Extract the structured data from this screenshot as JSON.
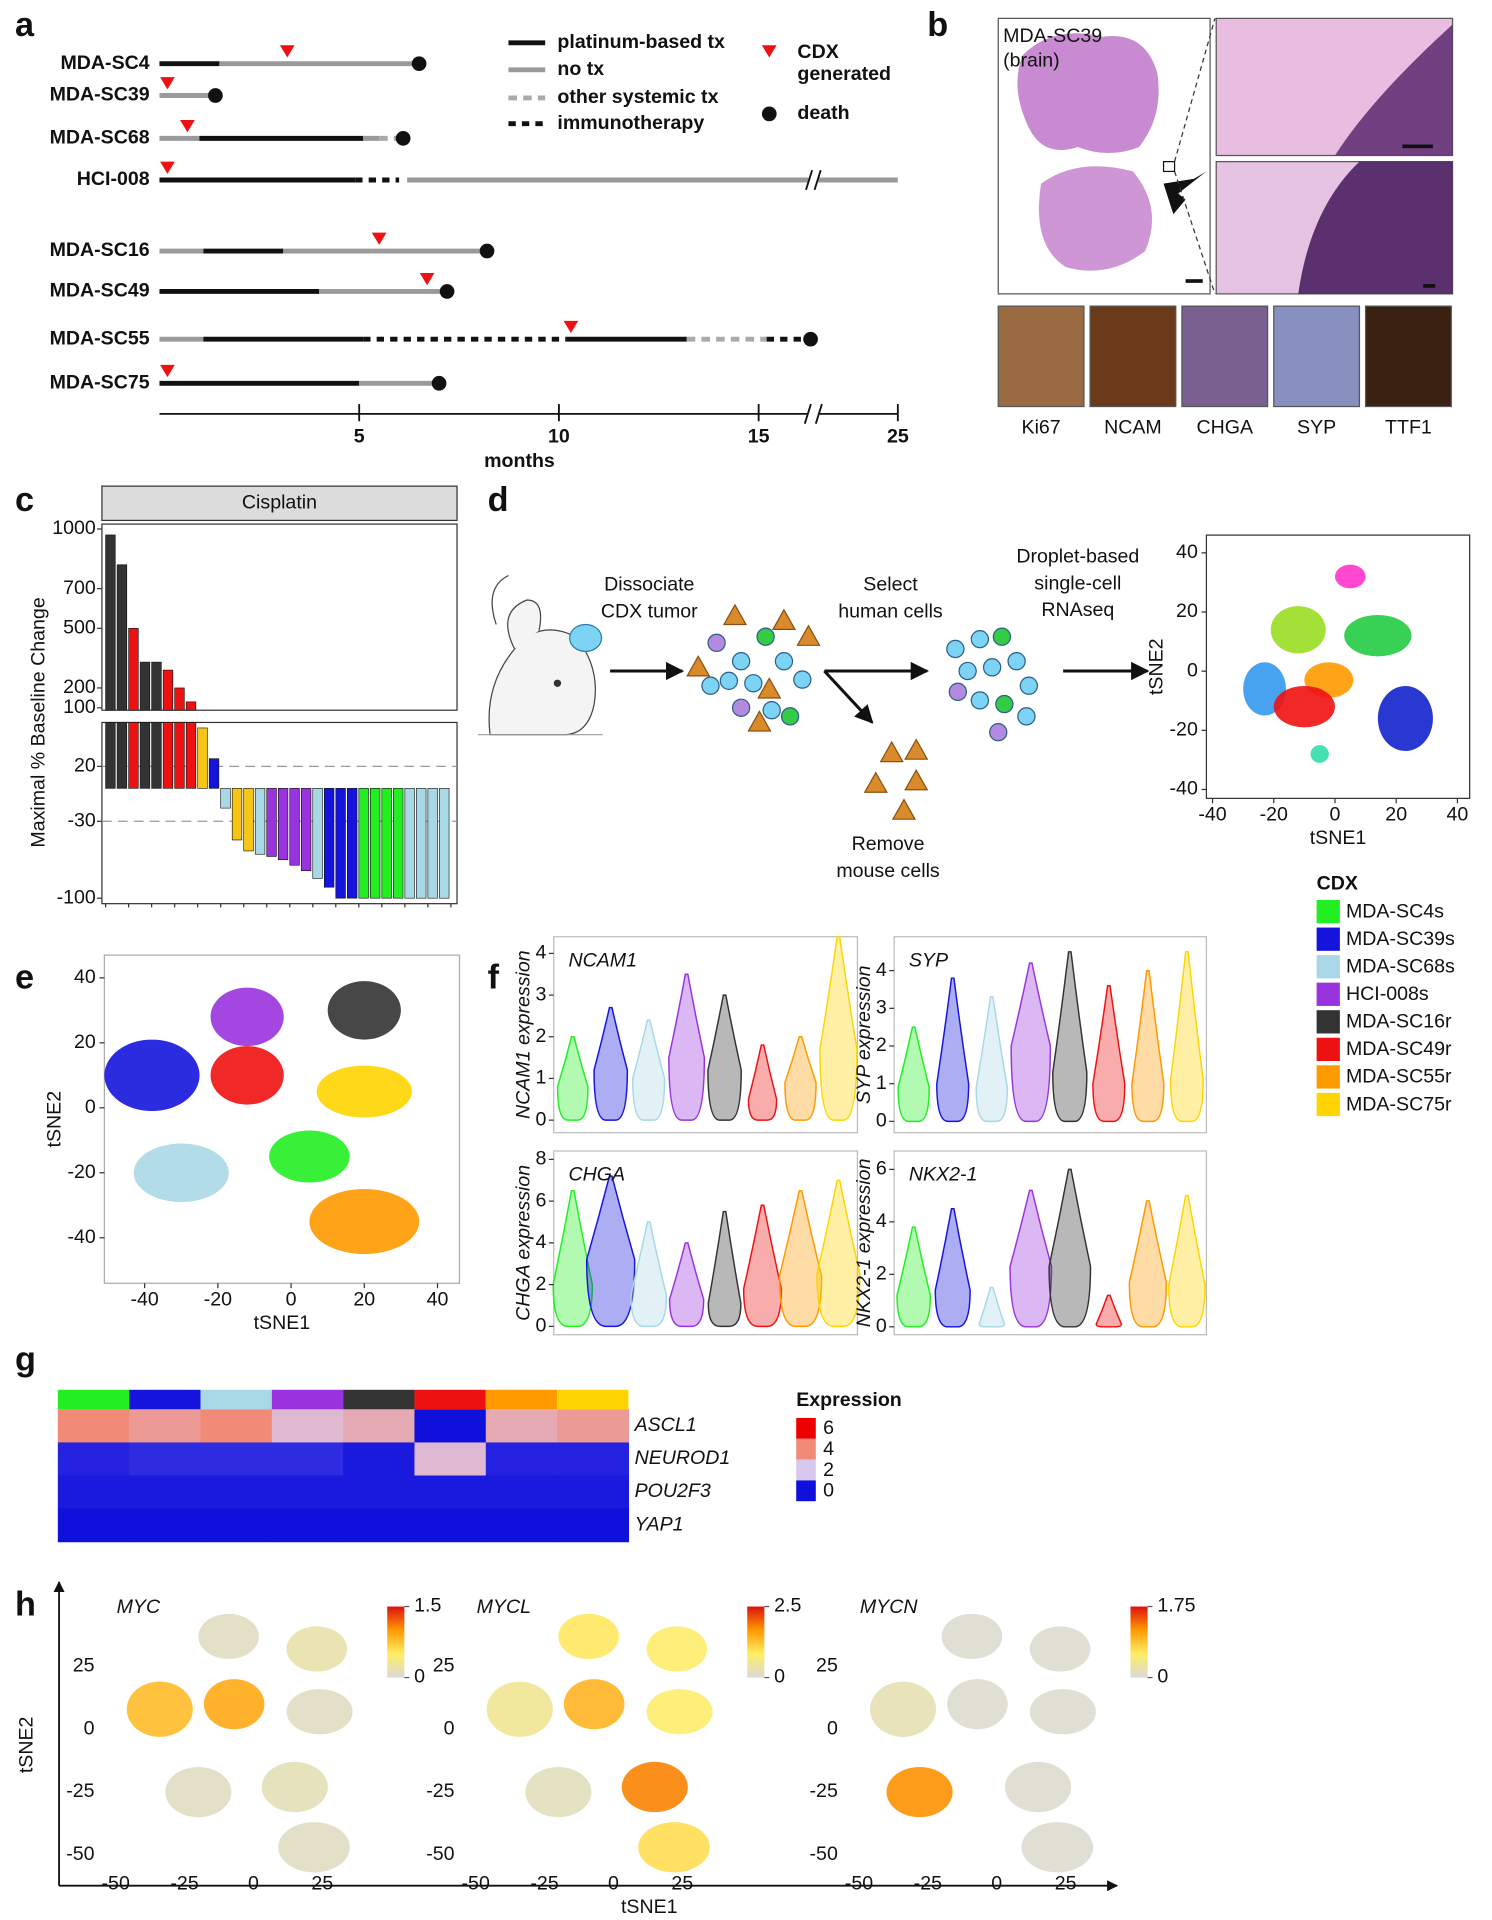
{
  "panel_labels": [
    "a",
    "b",
    "c",
    "d",
    "e",
    "f",
    "g",
    "h"
  ],
  "cdx_legend": {
    "title": "CDX",
    "names": [
      "MDA-SC4s",
      "MDA-SC39s",
      "MDA-SC68s",
      "HCI-008s",
      "MDA-SC16r",
      "MDA-SC49r",
      "MDA-SC55r",
      "MDA-SC75r"
    ],
    "colors": [
      "#22ee22",
      "#1414dd",
      "#a8d8e6",
      "#9933dd",
      "#333333",
      "#ee1111",
      "#ff9900",
      "#ffd400"
    ]
  },
  "histology": {
    "sample": [
      "MDA-SC39",
      "(brain)"
    ],
    "stains": [
      "Ki67",
      "NCAM",
      "CHGA",
      "SYP",
      "TTF1"
    ]
  },
  "workflow": {
    "steps": [
      [
        "Dissociate",
        "CDX tumor"
      ],
      [
        "Select",
        "human cells"
      ],
      [
        "Droplet-based",
        "single-cell",
        "RNAseq"
      ],
      [
        "Remove",
        "mouse cells"
      ]
    ]
  },
  "chart_data": [
    {
      "type": "timeline",
      "patients": [
        "MDA-SC4",
        "MDA-SC39",
        "MDA-SC68",
        "HCI-008",
        "MDA-SC16",
        "MDA-SC49",
        "MDA-SC55",
        "MDA-SC75"
      ],
      "segments": [
        [
          [
            0,
            1.5,
            0
          ],
          [
            1.5,
            6.5,
            1
          ]
        ],
        [
          [
            0,
            1.4,
            1
          ]
        ],
        [
          [
            0,
            1.0,
            1
          ],
          [
            1.0,
            5.1,
            0
          ],
          [
            5.1,
            5.5,
            1
          ],
          [
            5.5,
            6.0,
            2
          ]
        ],
        [
          [
            0,
            4.9,
            0
          ],
          [
            4.9,
            6.0,
            3
          ],
          [
            6.2,
            25,
            1
          ]
        ],
        [
          [
            0,
            1.1,
            1
          ],
          [
            1.1,
            3.1,
            0
          ],
          [
            3.1,
            8.2,
            1
          ]
        ],
        [
          [
            0,
            4.0,
            0
          ],
          [
            4.0,
            7.2,
            1
          ]
        ],
        [
          [
            0,
            1.1,
            1
          ],
          [
            1.1,
            5.1,
            0
          ],
          [
            5.1,
            10.2,
            3
          ],
          [
            10.2,
            13.2,
            0
          ],
          [
            13.2,
            15.2,
            2
          ],
          [
            15.2,
            16.3,
            3
          ]
        ],
        [
          [
            0,
            5.0,
            0
          ],
          [
            5.0,
            7.0,
            1
          ]
        ]
      ],
      "cdx": [
        3.2,
        0.2,
        0.7,
        0.2,
        5.5,
        6.7,
        10.3,
        0.2
      ],
      "death": [
        6.5,
        1.4,
        6.1,
        null,
        8.2,
        7.2,
        16.3,
        7.0
      ],
      "treatment_legend": [
        "platinum-based tx",
        "no tx",
        "other systemic tx",
        "immunotherapy"
      ],
      "cdx_label": [
        "CDX",
        "generated"
      ],
      "death_label": "death",
      "xlabel": "months",
      "xlim": [
        0,
        25
      ],
      "axis_break": 16.4,
      "xticks": [
        5,
        10,
        15,
        25
      ]
    },
    {
      "type": "bar",
      "title": "Cisplatin",
      "ylabel": "Maximal % Baseline Change",
      "values": [
        970,
        820,
        500,
        330,
        330,
        290,
        200,
        130,
        55,
        27,
        -18,
        -47,
        -57,
        -60,
        -62,
        -65,
        -70,
        -75,
        -82,
        -90,
        -100,
        -100,
        -100,
        -100,
        -100,
        -100,
        -100,
        -100,
        -100,
        -100
      ],
      "colors": [
        "#333333",
        "#333333",
        "#ee1111",
        "#333333",
        "#333333",
        "#ee1111",
        "#ee1111",
        "#ee1111",
        "#f5c518",
        "#1414dd",
        "#a8d8e6",
        "#f5c518",
        "#f5c518",
        "#a8d8e6",
        "#9933dd",
        "#9933dd",
        "#9933dd",
        "#9933dd",
        "#a8d8e6",
        "#1414dd",
        "#1414dd",
        "#1414dd",
        "#22ee22",
        "#22ee22",
        "#22ee22",
        "#22ee22",
        "#a8d8e6",
        "#a8d8e6",
        "#a8d8e6",
        "#a8d8e6"
      ],
      "ylim": [
        -105,
        1000
      ],
      "axis_break": [
        60,
        88
      ],
      "yticks": [
        1000,
        700,
        500,
        200,
        100,
        20,
        -30,
        -100
      ],
      "reference_lines": [
        20,
        -30
      ]
    },
    {
      "type": "scatter",
      "xlabel": "tSNE1",
      "ylabel": "tSNE2",
      "xlim": [
        -42,
        44
      ],
      "ylim": [
        -43,
        46
      ],
      "xticks": [
        -40,
        -20,
        0,
        20,
        40
      ],
      "yticks": [
        40,
        20,
        0,
        -20,
        -40
      ],
      "clusters": {
        "x": [
          5,
          -12,
          14,
          -23,
          -2,
          -10,
          23,
          -5
        ],
        "y": [
          32,
          14,
          12,
          -6,
          -3,
          -12,
          -16,
          -28
        ],
        "rx": [
          5,
          9,
          11,
          7,
          8,
          10,
          9,
          3
        ],
        "ry": [
          4,
          8,
          7,
          9,
          6,
          7,
          11,
          3
        ],
        "colors": [
          "#ff33cc",
          "#99dd22",
          "#22cc44",
          "#3399ee",
          "#ff9900",
          "#ee1111",
          "#1122cc",
          "#33ddaa"
        ]
      }
    },
    {
      "type": "scatter",
      "xlabel": "tSNE1",
      "ylabel": "tSNE2",
      "xlim": [
        -51,
        46
      ],
      "ylim": [
        -54,
        47
      ],
      "xticks": [
        -40,
        -20,
        0,
        20,
        40
      ],
      "yticks": [
        40,
        20,
        0,
        -20,
        -40
      ],
      "clusters": {
        "x": [
          5,
          -38,
          -30,
          -12,
          20,
          -12,
          20,
          20
        ],
        "y": [
          -15,
          10,
          -20,
          28,
          30,
          10,
          -35,
          5
        ],
        "rx": [
          11,
          13,
          13,
          10,
          10,
          10,
          15,
          13
        ],
        "ry": [
          8,
          11,
          9,
          9,
          9,
          9,
          10,
          8
        ],
        "colors": [
          "#22ee22",
          "#1414dd",
          "#a8d8e6",
          "#9933dd",
          "#333333",
          "#ee1111",
          "#ff9900",
          "#ffd400"
        ]
      }
    },
    {
      "type": "violin",
      "title": "NCAM1",
      "ylabel": "NCAM1 expression",
      "ylim": [
        -0.3,
        4.4
      ],
      "yticks": [
        0,
        1,
        2,
        3,
        4
      ],
      "median": [
        0.8,
        1.2,
        1.0,
        1.5,
        1.2,
        0.5,
        0.9,
        1.7
      ],
      "max": [
        2.0,
        2.7,
        2.4,
        3.5,
        3.0,
        1.8,
        2.0,
        4.4
      ]
    },
    {
      "type": "violin",
      "title": "SYP",
      "ylabel": "SYP expression",
      "ylim": [
        -0.3,
        4.9
      ],
      "yticks": [
        0,
        1,
        2,
        3,
        4
      ],
      "median": [
        0.9,
        1.0,
        0.9,
        2.0,
        1.3,
        1.0,
        1.0,
        1.1
      ],
      "max": [
        2.5,
        3.8,
        3.3,
        4.2,
        4.5,
        3.6,
        4.0,
        4.5
      ]
    },
    {
      "type": "violin",
      "title": "CHGA",
      "ylabel": "CHGA expression",
      "ylim": [
        -0.4,
        8.4
      ],
      "yticks": [
        0,
        2,
        4,
        6,
        8
      ],
      "median": [
        2.0,
        3.2,
        1.5,
        1.3,
        1.1,
        1.8,
        2.4,
        2.5
      ],
      "max": [
        6.5,
        7.2,
        5.0,
        4.0,
        5.5,
        5.8,
        6.5,
        7.0
      ]
    },
    {
      "type": "violin",
      "title": "NKX2-1",
      "ylabel": "NKX2-1 expression",
      "ylim": [
        -0.3,
        6.7
      ],
      "yticks": [
        0,
        2,
        4,
        6
      ],
      "median": [
        1.2,
        1.4,
        0.1,
        2.3,
        2.3,
        0.1,
        1.7,
        1.6
      ],
      "max": [
        3.8,
        4.5,
        1.5,
        5.2,
        6.0,
        1.2,
        4.8,
        5.0
      ]
    },
    {
      "type": "heatmap",
      "rows": [
        "ASCL1",
        "NEUROD1",
        "POU2F3",
        "YAP1"
      ],
      "values": [
        [
          4.0,
          3.5,
          4.0,
          2.5,
          3.0,
          0.0,
          3.0,
          3.5
        ],
        [
          0.2,
          0.3,
          0.3,
          0.3,
          0.1,
          2.5,
          0.2,
          0.2
        ],
        [
          0.1,
          0.1,
          0.1,
          0.1,
          0.1,
          0.1,
          0.1,
          0.1
        ],
        [
          0.0,
          0.0,
          0.0,
          0.0,
          0.0,
          0.0,
          0.0,
          0.0
        ]
      ],
      "legend_title": "Expression",
      "legend_ticks": [
        6,
        4,
        2,
        0
      ],
      "legend_colors": [
        "#ee0000",
        "#f28a78",
        "#d8c8f0",
        "#1010dd"
      ]
    },
    {
      "type": "feature",
      "title": "MYC",
      "xlim": [
        -55,
        45
      ],
      "ylim": [
        -55,
        45
      ],
      "xticks": [
        -50,
        -25,
        0,
        25
      ],
      "yticks": [
        25,
        0,
        -25,
        -50
      ],
      "colorbar_ticks": [
        0,
        1.5
      ],
      "clusters": {
        "x": [
          15,
          -34,
          -20,
          -9,
          23,
          -7,
          22,
          24
        ],
        "y": [
          -23,
          8,
          -25,
          37,
          32,
          10,
          -47,
          7
        ],
        "rx": [
          12,
          12,
          12,
          11,
          11,
          11,
          13,
          12
        ],
        "ry": [
          10,
          11,
          10,
          9,
          9,
          10,
          10,
          9
        ]
      },
      "values": [
        0.15,
        0.8,
        0.1,
        0.1,
        0.2,
        0.9,
        0.1,
        0.1
      ]
    },
    {
      "type": "feature",
      "title": "MYCL",
      "xlim": [
        -55,
        45
      ],
      "ylim": [
        -55,
        45
      ],
      "xticks": [
        -50,
        -25,
        0,
        25
      ],
      "yticks": [
        25,
        0,
        -25,
        -50
      ],
      "colorbar_ticks": [
        0,
        2.5
      ],
      "clusters": {
        "x": [
          15,
          -34,
          -20,
          -9,
          23,
          -7,
          22,
          24
        ],
        "y": [
          -23,
          8,
          -25,
          37,
          32,
          10,
          -47,
          7
        ],
        "rx": [
          12,
          12,
          12,
          11,
          11,
          11,
          13,
          12
        ],
        "ry": [
          10,
          11,
          10,
          9,
          9,
          10,
          10,
          9
        ]
      },
      "values": [
        1.8,
        0.5,
        0.2,
        0.9,
        0.8,
        1.4,
        1.0,
        0.8
      ]
    },
    {
      "type": "feature",
      "title": "MYCN",
      "xlim": [
        -55,
        45
      ],
      "ylim": [
        -55,
        45
      ],
      "xticks": [
        -50,
        -25,
        0,
        25
      ],
      "yticks": [
        25,
        0,
        -25,
        -50
      ],
      "colorbar_ticks": [
        0,
        1.75
      ],
      "clusters": {
        "x": [
          15,
          -34,
          -28,
          -9,
          23,
          -7,
          22,
          24
        ],
        "y": [
          -23,
          8,
          -25,
          37,
          32,
          10,
          -47,
          7
        ],
        "rx": [
          12,
          12,
          12,
          11,
          11,
          11,
          13,
          12
        ],
        "ry": [
          10,
          11,
          10,
          9,
          9,
          10,
          10,
          9
        ]
      },
      "values": [
        0.05,
        0.2,
        1.2,
        0.05,
        0.05,
        0.05,
        0.05,
        0.05
      ]
    }
  ],
  "panel_h_axes": {
    "xlabel": "tSNE1",
    "ylabel": "tSNE2"
  }
}
